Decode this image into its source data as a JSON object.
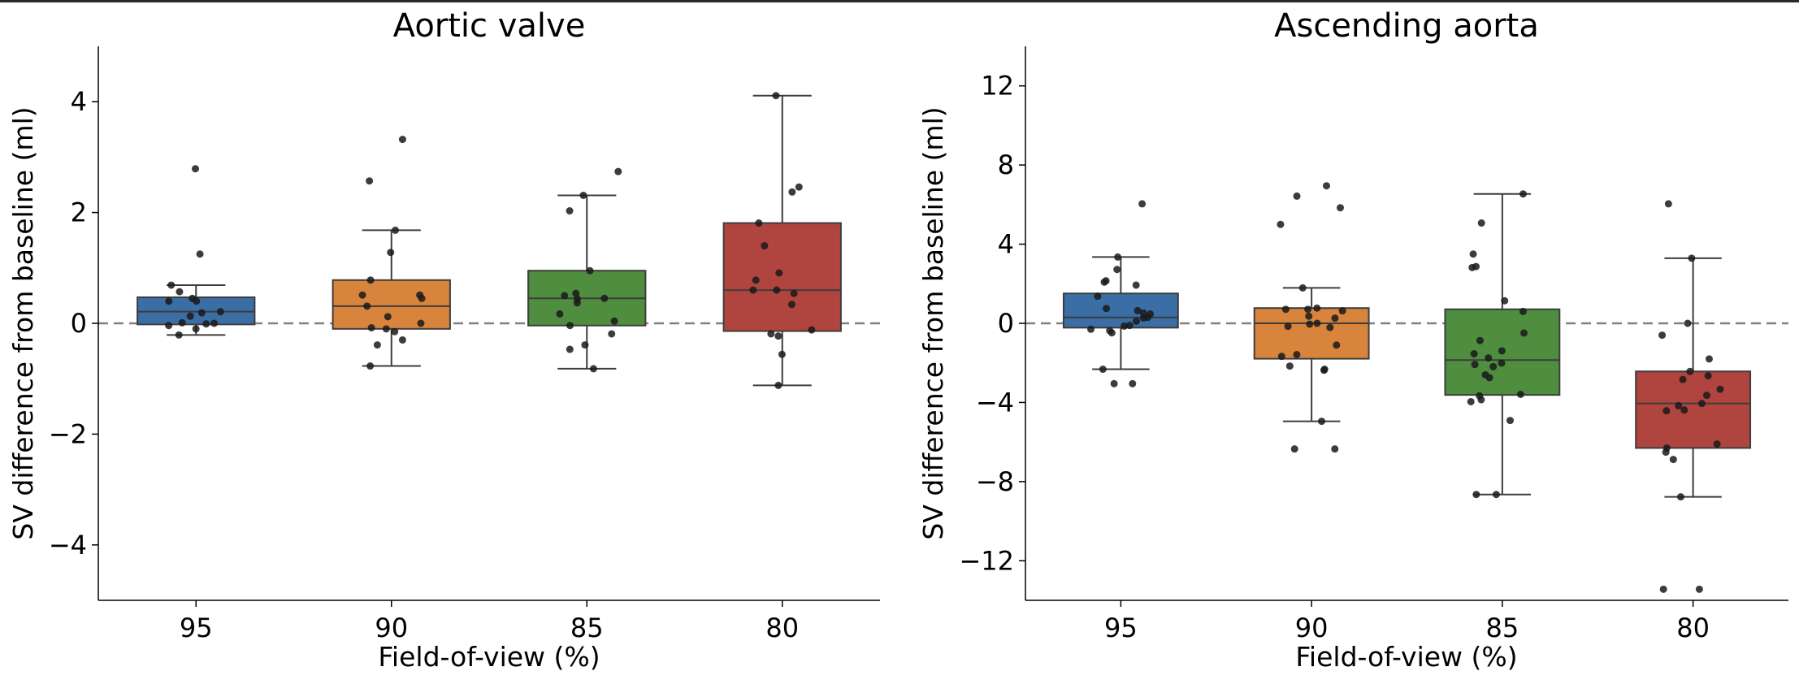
{
  "chart_data": [
    {
      "type": "box",
      "title": "Aortic valve",
      "xlabel": "Field-of-view (%)",
      "ylabel": "SV difference from baseline (ml)",
      "categories": [
        "95",
        "90",
        "85",
        "80"
      ],
      "ylim": [
        -5,
        5
      ],
      "yticks": [
        -4,
        -2,
        0,
        2,
        4
      ],
      "reference_line": 0,
      "grid": false,
      "colors": [
        "#3a6ea5",
        "#d8843c",
        "#4f8d3f",
        "#b0443f"
      ],
      "boxes": [
        {
          "category": "95",
          "q1": -0.02,
          "median": 0.21,
          "q3": 0.47,
          "whisker_low": -0.21,
          "whisker_high": 0.69,
          "points": [
            2.79,
            1.25,
            0.69,
            0.57,
            0.45,
            0.4,
            0.4,
            0.21,
            0.19,
            0.13,
            0.01,
            0.0,
            -0.01,
            -0.04,
            -0.1,
            -0.21
          ]
        },
        {
          "category": "90",
          "q1": -0.1,
          "median": 0.31,
          "q3": 0.78,
          "whisker_low": -0.77,
          "whisker_high": 1.68,
          "points": [
            3.32,
            2.57,
            1.68,
            1.28,
            0.78,
            0.51,
            0.51,
            0.45,
            0.31,
            0.12,
            0.0,
            -0.08,
            -0.1,
            -0.15,
            -0.3,
            -0.39,
            -0.77
          ]
        },
        {
          "category": "85",
          "q1": -0.04,
          "median": 0.45,
          "q3": 0.95,
          "whisker_low": -0.82,
          "whisker_high": 2.31,
          "points": [
            2.74,
            2.31,
            2.03,
            0.95,
            0.54,
            0.5,
            0.45,
            0.44,
            0.37,
            0.17,
            0.04,
            -0.04,
            -0.19,
            -0.39,
            -0.47,
            -0.82
          ]
        },
        {
          "category": "80",
          "q1": -0.14,
          "median": 0.6,
          "q3": 1.81,
          "whisker_low": -1.12,
          "whisker_high": 4.11,
          "points": [
            4.11,
            2.46,
            2.37,
            1.81,
            1.4,
            0.91,
            0.78,
            0.6,
            0.6,
            0.54,
            0.34,
            -0.12,
            -0.19,
            -0.23,
            -0.56,
            -1.12
          ]
        }
      ]
    },
    {
      "type": "box",
      "title": "Ascending aorta",
      "xlabel": "Field-of-view (%)",
      "ylabel": "SV difference from baseline (ml)",
      "categories": [
        "95",
        "90",
        "85",
        "80"
      ],
      "ylim": [
        -14,
        14
      ],
      "yticks": [
        -12,
        -8,
        -4,
        0,
        4,
        8,
        12
      ],
      "reference_line": 0,
      "grid": false,
      "colors": [
        "#3a6ea5",
        "#d8843c",
        "#4f8d3f",
        "#b0443f"
      ],
      "boxes": [
        {
          "category": "95",
          "q1": -0.22,
          "median": 0.3,
          "q3": 1.51,
          "whisker_low": -2.32,
          "whisker_high": 3.35,
          "points": [
            6.04,
            3.35,
            2.72,
            2.15,
            2.08,
            1.93,
            1.37,
            0.75,
            0.64,
            0.52,
            0.47,
            0.3,
            0.27,
            0.11,
            -0.11,
            -0.14,
            -0.3,
            -0.37,
            -0.48,
            -2.32,
            -3.05,
            -3.05
          ]
        },
        {
          "category": "90",
          "q1": -1.79,
          "median": 0.0,
          "q3": 0.77,
          "whisker_low": -4.95,
          "whisker_high": 1.79,
          "points": [
            6.95,
            6.43,
            5.84,
            5.0,
            1.79,
            0.77,
            0.71,
            0.71,
            0.63,
            0.36,
            0.26,
            0.0,
            -0.04,
            -0.15,
            -0.21,
            -1.1,
            -1.58,
            -1.67,
            -2.16,
            -2.32,
            -2.37,
            -4.95,
            -6.35,
            -6.35
          ]
        },
        {
          "category": "85",
          "q1": -3.62,
          "median": -1.86,
          "q3": 0.71,
          "whisker_low": -8.65,
          "whisker_high": 6.54,
          "points": [
            6.54,
            5.07,
            3.5,
            2.87,
            2.82,
            1.14,
            0.6,
            -0.49,
            -0.87,
            -1.39,
            -1.54,
            -1.75,
            -2.01,
            -2.08,
            -2.19,
            -2.6,
            -2.75,
            -3.59,
            -3.66,
            -3.86,
            -3.96,
            -4.91,
            -8.65,
            -8.65
          ]
        },
        {
          "category": "80",
          "q1": -6.3,
          "median": -4.05,
          "q3": -2.43,
          "whisker_low": -8.77,
          "whisker_high": 3.29,
          "points": [
            6.04,
            3.29,
            0.0,
            -0.6,
            -1.8,
            -2.43,
            -2.65,
            -2.84,
            -3.33,
            -3.64,
            -4.05,
            -4.16,
            -4.38,
            -4.42,
            -6.1,
            -6.3,
            -6.51,
            -6.88,
            -8.77,
            -13.44,
            -13.44
          ]
        }
      ]
    }
  ]
}
